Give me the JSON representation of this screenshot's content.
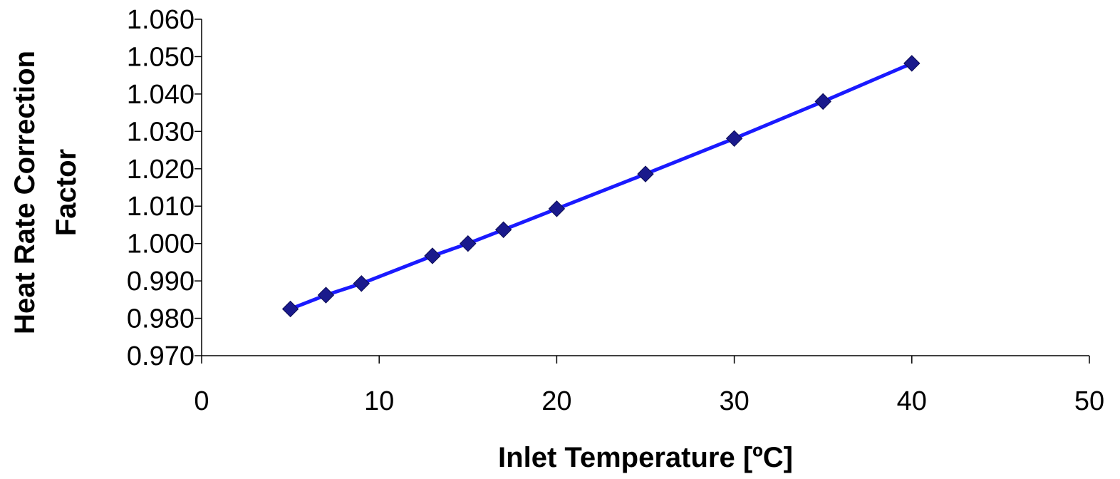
{
  "chart_data": {
    "type": "line",
    "title": "",
    "xlabel": "Inlet Temperature [ºC]",
    "ylabel_lines": [
      "Heat Rate Correction",
      "Factor"
    ],
    "xlim": [
      0,
      50
    ],
    "ylim": [
      0.97,
      1.06
    ],
    "x_ticks": [
      0,
      10,
      20,
      30,
      40,
      50
    ],
    "x_tick_labels": [
      "0",
      "10",
      "20",
      "30",
      "40",
      "50"
    ],
    "y_ticks": [
      0.97,
      0.98,
      0.99,
      1.0,
      1.01,
      1.02,
      1.03,
      1.04,
      1.05,
      1.06
    ],
    "y_tick_labels": [
      "0.970",
      "0.980",
      "0.990",
      "1.000",
      "1.010",
      "1.020",
      "1.030",
      "1.040",
      "1.050",
      "1.060"
    ],
    "grid": false,
    "legend": "none",
    "series": [
      {
        "x": [
          5,
          7,
          9,
          13,
          15,
          17,
          20,
          25,
          30,
          35,
          40
        ],
        "y": [
          0.9825,
          0.9862,
          0.9893,
          0.9967,
          1.0,
          1.0037,
          1.0093,
          1.0186,
          1.0281,
          1.038,
          1.0482
        ],
        "line_color": "#1a1aff",
        "marker_color": "#1a1a8c",
        "marker": "diamond"
      }
    ]
  }
}
